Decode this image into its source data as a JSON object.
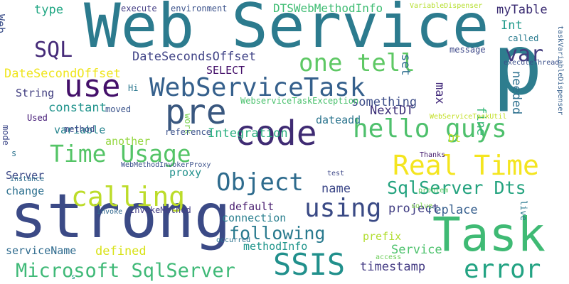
{
  "words": [
    {
      "text": "Web Service",
      "color": "#2c7b8e"
    },
    {
      "text": "strong",
      "color": "#3b4a86"
    },
    {
      "text": "Task",
      "color": "#3fba74"
    },
    {
      "text": "p",
      "color": "#2e7d8e"
    },
    {
      "text": "code",
      "color": "#3f2b73"
    },
    {
      "text": "pre",
      "color": "#39577f"
    },
    {
      "text": "use",
      "color": "#44106a"
    },
    {
      "text": "calling",
      "color": "#bcdc29"
    },
    {
      "text": "Real Time",
      "color": "#f4e51f"
    },
    {
      "text": "Time Usage",
      "color": "#54c466"
    },
    {
      "text": "hello guys",
      "color": "#4ec06c"
    },
    {
      "text": "WebServiceTask",
      "color": "#35608c"
    },
    {
      "text": "using",
      "color": "#3a4a85"
    },
    {
      "text": "Object",
      "color": "#2e6b8d"
    },
    {
      "text": "one tell",
      "color": "#5ec864"
    },
    {
      "text": "SSIS",
      "color": "#21908c"
    },
    {
      "text": "error",
      "color": "#23a383"
    },
    {
      "text": "Microsoft SqlServer",
      "color": "#3fb977"
    },
    {
      "text": "var",
      "color": "#433c7e"
    },
    {
      "text": "SQL",
      "color": "#452a78"
    },
    {
      "text": "SqlServer Dts",
      "color": "#24a37f"
    },
    {
      "text": "following",
      "color": "#297a8e"
    },
    {
      "text": "DateSecondsOffset",
      "color": "#414487"
    },
    {
      "text": "DateSecondOffset",
      "color": "#efe51c"
    },
    {
      "text": "DTSWebMethodInfo",
      "color": "#3ebc72"
    },
    {
      "text": "myTable",
      "color": "#3a2b72"
    },
    {
      "text": "set",
      "color": "#2d6e8e"
    },
    {
      "text": "type",
      "color": "#22a784"
    },
    {
      "text": "Int",
      "color": "#1f9a8a"
    },
    {
      "text": "SELECT",
      "color": "#44106a"
    },
    {
      "text": "String",
      "color": "#3f3c7f"
    },
    {
      "text": "needed",
      "color": "#2d708e"
    },
    {
      "text": "constant",
      "color": "#20938c"
    },
    {
      "text": "something",
      "color": "#3d4d88"
    },
    {
      "text": "fine",
      "color": "#37b878"
    },
    {
      "text": "NextDT",
      "color": "#3a2c76"
    },
    {
      "text": "max",
      "color": "#41287a"
    },
    {
      "text": "variable",
      "color": "#25848e"
    },
    {
      "text": "dateadd",
      "color": "#2b748e"
    },
    {
      "text": "Integration",
      "color": "#29af7f"
    },
    {
      "text": "another",
      "color": "#94d740"
    },
    {
      "text": "Dt",
      "color": "#c5e021"
    },
    {
      "text": "Server",
      "color": "#3d4a87"
    },
    {
      "text": "change",
      "color": "#2b6f8e"
    },
    {
      "text": "proxy",
      "color": "#22918c"
    },
    {
      "text": "name",
      "color": "#3e4989"
    },
    {
      "text": "replace",
      "color": "#355e8d"
    },
    {
      "text": "project",
      "color": "#3f3c82"
    },
    {
      "text": "default",
      "color": "#481d6f"
    },
    {
      "text": "connection",
      "color": "#2a7f8e"
    },
    {
      "text": "prefix",
      "color": "#b1dd2f"
    },
    {
      "text": "defined",
      "color": "#d8e219"
    },
    {
      "text": "serviceName",
      "color": "#2f6b8e"
    },
    {
      "text": "methodInfo",
      "color": "#1f958b"
    },
    {
      "text": "Service",
      "color": "#4cc26c"
    },
    {
      "text": "timestamp",
      "color": "#433a83"
    },
    {
      "text": "Web",
      "color": "#3c4f8a"
    },
    {
      "text": "mode",
      "color": "#3e4989"
    },
    {
      "text": "Used",
      "color": "#3b0f70"
    },
    {
      "text": "moved",
      "color": "#3a538b"
    },
    {
      "text": "Hi",
      "color": "#2a778e"
    },
    {
      "text": "execute",
      "color": "#433d84"
    },
    {
      "text": "environment",
      "color": "#3b528b"
    },
    {
      "text": "VariableDispenser",
      "color": "#b5de2b"
    },
    {
      "text": "message",
      "color": "#3e4989"
    },
    {
      "text": "executeThread",
      "color": "#3b4f8a"
    },
    {
      "text": "called",
      "color": "#297b8e"
    },
    {
      "text": "WebserviceTaskException",
      "color": "#4ac16d"
    },
    {
      "text": "work",
      "color": "#7ad151"
    },
    {
      "text": "reference",
      "color": "#3b528b"
    },
    {
      "text": "WebMethodInvokerProxy",
      "color": "#3b518b"
    },
    {
      "text": "instance",
      "color": "#2e6e8e"
    },
    {
      "text": "s",
      "color": "#2c728e"
    },
    {
      "text": "method",
      "color": "#3e4a89"
    },
    {
      "text": "WebServiceTaskUtil",
      "color": "#c2df23"
    },
    {
      "text": "taskVariableDispenser",
      "color": "#355f8d"
    },
    {
      "text": "live",
      "color": "#2a788e"
    },
    {
      "text": "Thanks",
      "color": "#481f70"
    },
    {
      "text": "problem",
      "color": "#5ec962"
    },
    {
      "text": "solve",
      "color": "#7fd34e"
    },
    {
      "text": "access",
      "color": "#6ccd5a"
    },
    {
      "text": "test",
      "color": "#3e4989"
    },
    {
      "text": "Invoke",
      "color": "#31688e"
    },
    {
      "text": "InvokeMethod",
      "color": "#433e85"
    },
    {
      "text": "occurred",
      "color": "#2c728e"
    },
    {
      "text": "s",
      "color": "#1fa088"
    }
  ]
}
